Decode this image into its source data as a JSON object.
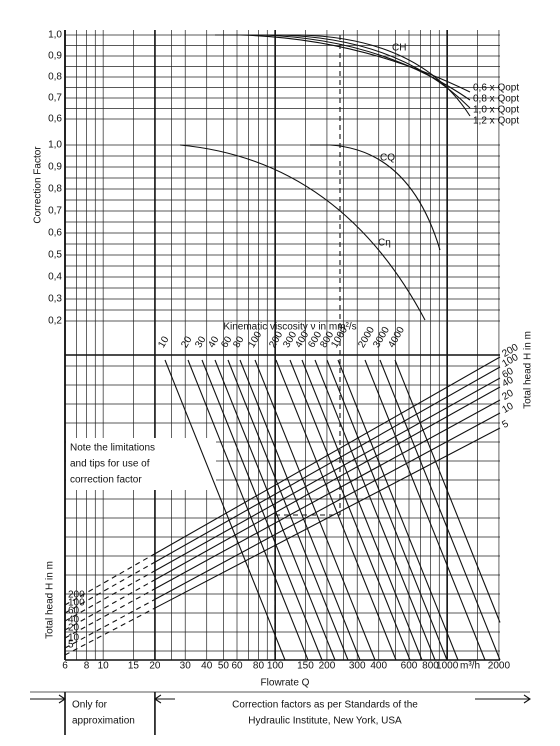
{
  "y_axis_label": "Correction Factor",
  "ch_scale": [
    "1,0",
    "0,9",
    "0,8",
    "0,7",
    "0,6"
  ],
  "cq_scale": [
    "1,0",
    "0,9",
    "0,8",
    "0,7",
    "0,6",
    "0,5",
    "0,4",
    "0,3",
    "0,2"
  ],
  "curve_labels": {
    "ch": "CH",
    "cq": "CQ",
    "ceta": "Cη"
  },
  "qopt_labels": [
    "0,6 x Qopt",
    "0,8 x Qopt",
    "1,0 x Qopt",
    "1,2 x Qopt"
  ],
  "viscosity_title": "Kinematic viscosity ν in mm²/s",
  "viscosity_labels": [
    "10",
    "20",
    "30",
    "40",
    "60",
    "80",
    "100",
    "200",
    "300",
    "400",
    "600",
    "800",
    "1000",
    "2000",
    "3000",
    "4000"
  ],
  "head_title": "Total head H in m",
  "head_labels": [
    "200",
    "100",
    "60",
    "40",
    "20",
    "10",
    "5"
  ],
  "note": [
    "Note the limitations",
    "and tips for use of",
    "correction factor"
  ],
  "x_labels": [
    "6",
    "8",
    "10",
    "15",
    "20",
    "30",
    "40",
    "50",
    "60",
    "80",
    "100",
    "150",
    "200",
    "300",
    "400",
    "600",
    "800",
    "1000",
    "m³/h",
    "2000"
  ],
  "x_axis_label": "Flowrate Q",
  "footer_left": [
    "Only for",
    "approximation"
  ],
  "footer_right": [
    "Correction factors as per Standards of the",
    "Hydraulic Institute, New York, USA"
  ]
}
